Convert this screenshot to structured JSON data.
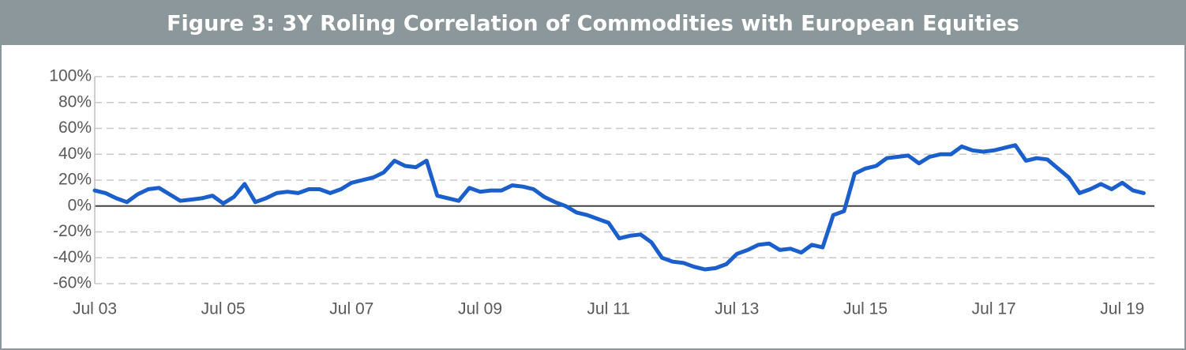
{
  "chart_data": {
    "type": "line",
    "title": "Figure 3: 3Y Roling Correlation of Commodities with European Equities",
    "x": [
      "2003-07",
      "2003-09",
      "2003-11",
      "2004-01",
      "2004-03",
      "2004-05",
      "2004-07",
      "2004-09",
      "2004-11",
      "2005-01",
      "2005-03",
      "2005-05",
      "2005-07",
      "2005-09",
      "2005-11",
      "2006-01",
      "2006-03",
      "2006-05",
      "2006-07",
      "2006-09",
      "2006-11",
      "2007-01",
      "2007-03",
      "2007-05",
      "2007-07",
      "2007-09",
      "2007-11",
      "2008-01",
      "2008-03",
      "2008-05",
      "2008-07",
      "2008-09",
      "2008-11",
      "2009-01",
      "2009-03",
      "2009-05",
      "2009-07",
      "2009-09",
      "2009-11",
      "2010-01",
      "2010-03",
      "2010-05",
      "2010-07",
      "2010-09",
      "2010-11",
      "2011-01",
      "2011-03",
      "2011-05",
      "2011-07",
      "2011-09",
      "2011-11",
      "2012-01",
      "2012-03",
      "2012-05",
      "2012-07",
      "2012-09",
      "2012-11",
      "2013-01",
      "2013-03",
      "2013-05",
      "2013-07",
      "2013-09",
      "2013-11",
      "2014-01",
      "2014-03",
      "2014-05",
      "2014-07",
      "2014-09",
      "2014-11",
      "2015-01",
      "2015-03",
      "2015-05",
      "2015-07",
      "2015-09",
      "2015-11",
      "2016-01",
      "2016-03",
      "2016-05",
      "2016-07",
      "2016-09",
      "2016-11",
      "2017-01",
      "2017-03",
      "2017-05",
      "2017-07",
      "2017-09",
      "2017-11",
      "2018-01",
      "2018-03",
      "2018-05",
      "2018-07",
      "2018-09",
      "2018-11",
      "2019-01",
      "2019-03",
      "2019-05",
      "2019-07",
      "2019-09",
      "2019-11"
    ],
    "values": [
      12,
      10,
      6,
      3,
      9,
      13,
      14,
      9,
      4,
      5,
      6,
      8,
      2,
      7,
      17,
      3,
      6,
      10,
      11,
      10,
      13,
      13,
      10,
      13,
      18,
      20,
      22,
      26,
      35,
      31,
      30,
      35,
      8,
      6,
      4,
      14,
      11,
      12,
      12,
      16,
      15,
      13,
      7,
      3,
      0,
      -5,
      -7,
      -10,
      -13,
      -25,
      -23,
      -22,
      -28,
      -40,
      -43,
      -44,
      -47,
      -49,
      -48,
      -45,
      -37,
      -34,
      -30,
      -29,
      -34,
      -33,
      -36,
      -30,
      -32,
      -7,
      -4,
      25,
      29,
      31,
      37,
      38,
      39,
      33,
      38,
      40,
      40,
      46,
      43,
      42,
      43,
      45,
      47,
      35,
      37,
      36,
      29,
      22,
      10,
      13,
      17,
      13,
      18,
      12,
      10
    ],
    "color": "#1a5fcb",
    "xlim": [
      "2003-07",
      "2020-01"
    ],
    "xticks": [
      {
        "value": "2003-07",
        "label": "Jul 03"
      },
      {
        "value": "2005-07",
        "label": "Jul 05"
      },
      {
        "value": "2007-07",
        "label": "Jul 07"
      },
      {
        "value": "2009-07",
        "label": "Jul 09"
      },
      {
        "value": "2011-07",
        "label": "Jul 11"
      },
      {
        "value": "2013-07",
        "label": "Jul 13"
      },
      {
        "value": "2015-07",
        "label": "Jul 15"
      },
      {
        "value": "2017-07",
        "label": "Jul 17"
      },
      {
        "value": "2019-07",
        "label": "Jul 19"
      }
    ],
    "ylim": [
      -60,
      100
    ],
    "yticks": [
      {
        "value": -60,
        "label": "-60%"
      },
      {
        "value": -40,
        "label": "-40%"
      },
      {
        "value": -20,
        "label": "-20%"
      },
      {
        "value": 0,
        "label": "0%"
      },
      {
        "value": 20,
        "label": "20%"
      },
      {
        "value": 40,
        "label": "40%"
      },
      {
        "value": 60,
        "label": "60%"
      },
      {
        "value": 80,
        "label": "80%"
      },
      {
        "value": 100,
        "label": "100%"
      }
    ],
    "grid": true
  }
}
